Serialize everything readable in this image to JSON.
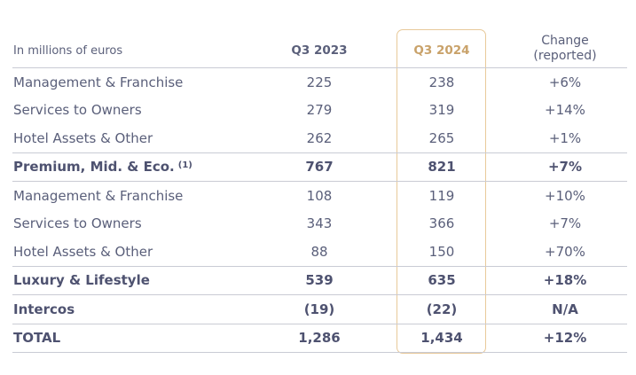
{
  "header": {
    "label": "In millions of euros",
    "q3_2023": "Q3 2023",
    "q3_2024": "Q3 2024",
    "change_line1": "Change",
    "change_line2": "(reported)"
  },
  "rows": [
    {
      "label": "Management & Franchise",
      "q3_2023": "225",
      "q3_2024": "238",
      "change": "+6%"
    },
    {
      "label": "Services to Owners",
      "q3_2023": "279",
      "q3_2024": "319",
      "change": "+14%"
    },
    {
      "label": "Hotel Assets & Other",
      "q3_2023": "262",
      "q3_2024": "265",
      "change": "+1%"
    },
    {
      "label": "Premium, Mid. & Eco.",
      "footnote": "(1)",
      "q3_2023": "767",
      "q3_2024": "821",
      "change": "+7%"
    },
    {
      "label": "Management & Franchise",
      "q3_2023": "108",
      "q3_2024": "119",
      "change": "+10%"
    },
    {
      "label": "Services to Owners",
      "q3_2023": "343",
      "q3_2024": "366",
      "change": "+7%"
    },
    {
      "label": "Hotel Assets & Other",
      "q3_2023": "88",
      "q3_2024": "150",
      "change": "+70%"
    },
    {
      "label": "Luxury & Lifestyle",
      "q3_2023": "539",
      "q3_2024": "635",
      "change": "+18%"
    },
    {
      "label": "Intercos",
      "q3_2023": "(19)",
      "q3_2024": "(22)",
      "change": "N/A"
    },
    {
      "label": "TOTAL",
      "q3_2023": "1,286",
      "q3_2024": "1,434",
      "change": "+12%"
    }
  ]
}
